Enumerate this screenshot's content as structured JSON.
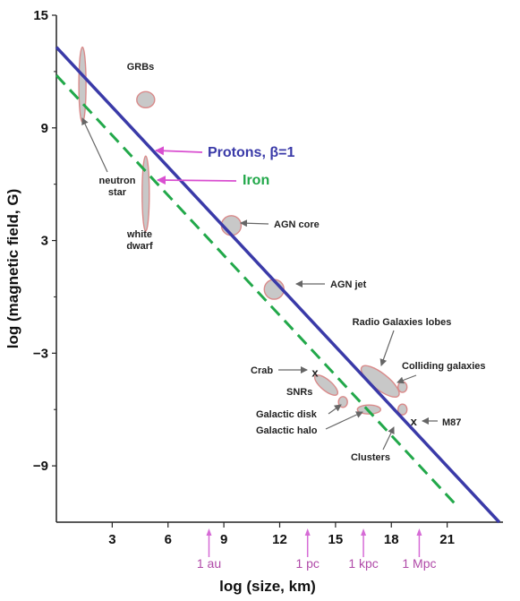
{
  "chart_data": {
    "type": "scatter",
    "xlabel": "log (size, km)",
    "ylabel": "log (magnetic field, G)",
    "xlim": [
      0,
      24
    ],
    "ylim": [
      -12,
      15
    ],
    "xticks": [
      3,
      6,
      9,
      12,
      15,
      18,
      21
    ],
    "yticks": [
      15,
      9,
      3,
      -3,
      -9
    ],
    "ytick_labels": [
      "15",
      "9",
      "3",
      "−3",
      "−9"
    ],
    "grid": false,
    "colors": {
      "protons": "#3a3aa8",
      "iron": "#22a84a",
      "object_fill": "#c8c8c8",
      "object_edge": "#d98a8a",
      "scale_arrow": "#d66bd6",
      "label_arrow_protons": "#d94fd0"
    },
    "series": [
      {
        "name": "Protons, β=1",
        "line_style": "solid",
        "x": [
          0.0,
          23.8
        ],
        "y": [
          13.3,
          -12.0
        ]
      },
      {
        "name": "Iron",
        "line_style": "dashed",
        "x": [
          0.0,
          21.4
        ],
        "y": [
          11.8,
          -11.0
        ]
      }
    ],
    "objects": [
      {
        "name": "neutron star",
        "x": 1.4,
        "y": 11.3,
        "kind": "tall"
      },
      {
        "name": "GRBs",
        "x": 4.8,
        "y": 10.5,
        "kind": "round"
      },
      {
        "name": "white dwarf",
        "x": 4.8,
        "y": 5.5,
        "kind": "tall"
      },
      {
        "name": "AGN core",
        "x": 9.4,
        "y": 3.8,
        "kind": "round"
      },
      {
        "name": "AGN jet",
        "x": 11.7,
        "y": 0.4,
        "kind": "round"
      },
      {
        "name": "Radio Galaxies lobes",
        "x": 17.4,
        "y": -4.5,
        "kind": "tilted"
      },
      {
        "name": "Colliding galaxies",
        "x": 18.6,
        "y": -4.8,
        "kind": "small"
      },
      {
        "name": "SNRs",
        "x": 14.5,
        "y": -4.7,
        "kind": "tilted"
      },
      {
        "name": "Galactic disk",
        "x": 15.4,
        "y": -5.6,
        "kind": "small"
      },
      {
        "name": "Galactic halo",
        "x": 16.8,
        "y": -6.0,
        "kind": "flat"
      },
      {
        "name": "Clusters",
        "x": 18.6,
        "y": -6.0,
        "kind": "small"
      },
      {
        "name": "Crab",
        "x": 13.9,
        "y": -4.0,
        "kind": "x"
      },
      {
        "name": "M87",
        "x": 19.2,
        "y": -6.6,
        "kind": "x"
      }
    ],
    "annotations": [
      "GRBs",
      "neutron star",
      "white dwarf",
      "AGN core",
      "AGN jet",
      "Radio Galaxies lobes",
      "Colliding galaxies",
      "Crab",
      "SNRs",
      "Galactic disk",
      "Galactic halo",
      "Clusters",
      "M87"
    ],
    "line_labels": [
      "Protons,  β=1",
      "Iron"
    ],
    "scale_markers": [
      {
        "label": "1 au",
        "x": 8.2
      },
      {
        "label": "1 pc",
        "x": 13.5
      },
      {
        "label": "1 kpc",
        "x": 16.5
      },
      {
        "label": "1 Mpc",
        "x": 19.5
      }
    ]
  }
}
